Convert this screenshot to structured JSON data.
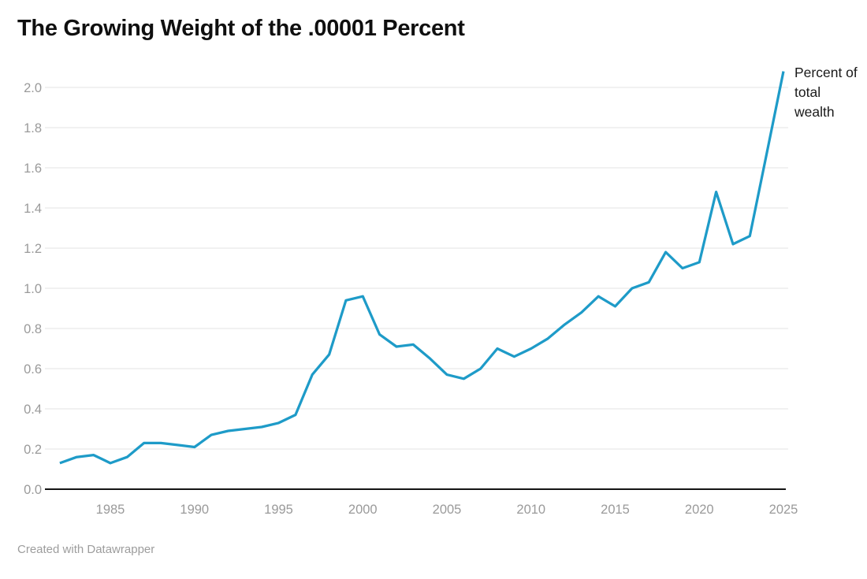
{
  "title": "The Growing Weight of the .00001 Percent",
  "annotation": {
    "label": "Percent of total wealth"
  },
  "footer": {
    "credit": "Created with Datawrapper"
  },
  "colors": {
    "line": "#1e9bc8",
    "grid": "#e3e3e3",
    "baseline": "#141414",
    "tick_text": "#9a9a9a",
    "title_text": "#0f0f0f",
    "annotation_text": "#1a1a1a",
    "footer_text": "#9d9d9d"
  },
  "chart_data": {
    "type": "line",
    "title": "The Growing Weight of the .00001 Percent",
    "series": [
      {
        "name": "Percent of total wealth",
        "x": [
          1982,
          1983,
          1984,
          1985,
          1986,
          1987,
          1988,
          1989,
          1990,
          1991,
          1992,
          1993,
          1994,
          1995,
          1996,
          1997,
          1998,
          1999,
          2000,
          2001,
          2002,
          2003,
          2004,
          2005,
          2006,
          2007,
          2008,
          2009,
          2010,
          2011,
          2012,
          2013,
          2014,
          2015,
          2016,
          2017,
          2018,
          2019,
          2020,
          2021,
          2022,
          2023,
          2024,
          2025
        ],
        "values": [
          0.13,
          0.16,
          0.17,
          0.13,
          0.16,
          0.23,
          0.23,
          0.22,
          0.21,
          0.27,
          0.29,
          0.3,
          0.31,
          0.33,
          0.37,
          0.57,
          0.67,
          0.94,
          0.96,
          0.77,
          0.71,
          0.72,
          0.65,
          0.57,
          0.55,
          0.6,
          0.7,
          0.66,
          0.7,
          0.75,
          0.82,
          0.88,
          0.96,
          0.91,
          1.0,
          1.03,
          1.18,
          1.1,
          1.13,
          1.48,
          1.22,
          1.26,
          1.67,
          2.08
        ]
      }
    ],
    "xlabel": "",
    "ylabel": "",
    "x_ticks": [
      "1985",
      "1990",
      "1995",
      "2000",
      "2005",
      "2010",
      "2015",
      "2020",
      "2025"
    ],
    "y_ticks": [
      "0.0",
      "0.2",
      "0.4",
      "0.6",
      "0.8",
      "1.0",
      "1.2",
      "1.4",
      "1.6",
      "1.8",
      "2.0"
    ],
    "xlim": [
      1982,
      2025
    ],
    "ylim": [
      0.0,
      2.1
    ],
    "grid": "horizontal",
    "legend_position": "annotation-top-right"
  }
}
